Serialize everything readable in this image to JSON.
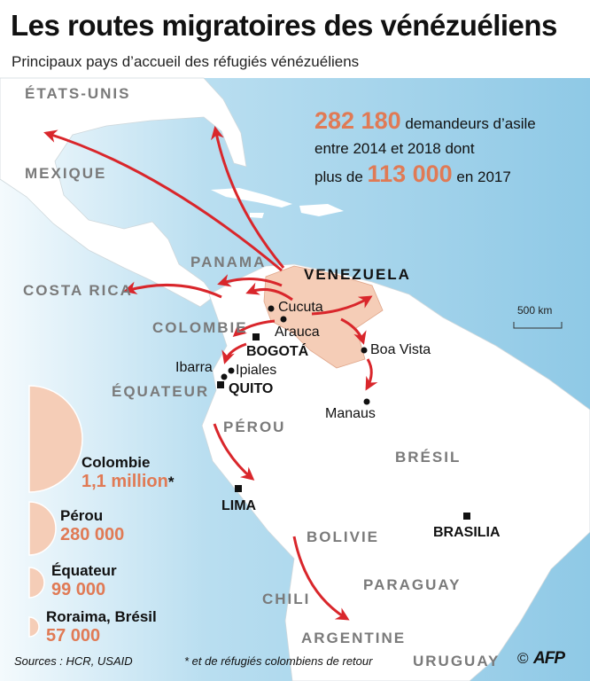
{
  "title": "Les routes migratoires des vénézuéliens",
  "subtitle": "Principaux pays d’accueil des réfugiés vénézuéliens",
  "colors": {
    "ocean": "#9fd0e8",
    "land": "#ffffff",
    "venezuela": "#f5cdb7",
    "arrow": "#d9262b",
    "accent": "#e07a55"
  },
  "info_box": {
    "count1": "282 180",
    "text1": " demandeurs d’asile",
    "text2": "entre 2014 et 2018 dont",
    "text3_pre": "plus de ",
    "count2": "113 000",
    "text3_post": " en 2017"
  },
  "countries": [
    "ÉTATS-UNIS",
    "MEXIQUE",
    "PANAMA",
    "COSTA RICA",
    "COLOMBIE",
    "ÉQUATEUR",
    "PÉROU",
    "BRÉSIL",
    "BOLIVIE",
    "PARAGUAY",
    "CHILI",
    "ARGENTINE",
    "URUGUAY"
  ],
  "highlight_country": "VENEZUELA",
  "cities": [
    "Cucuta",
    "Arauca",
    "Boa Vista",
    "Manaus",
    "Ibarra",
    "Ipiales"
  ],
  "capitals": [
    "BOGOTÁ",
    "QUITO",
    "LIMA",
    "BRASILIA"
  ],
  "scale": "500 km",
  "legend": [
    {
      "name": "Colombie",
      "value": "1,1 million",
      "note": "*",
      "refugees": 1100000
    },
    {
      "name": "Pérou",
      "value": "280 000",
      "refugees": 280000
    },
    {
      "name": "Équateur",
      "value": "99 000",
      "refugees": 99000
    },
    {
      "name": "Roraima, Brésil",
      "value": "57 000",
      "refugees": 57000
    }
  ],
  "sources": "Sources : HCR, USAID",
  "footnote": "* et de réfugiés colombiens de retour",
  "copyright": "©",
  "logo": "AFP"
}
